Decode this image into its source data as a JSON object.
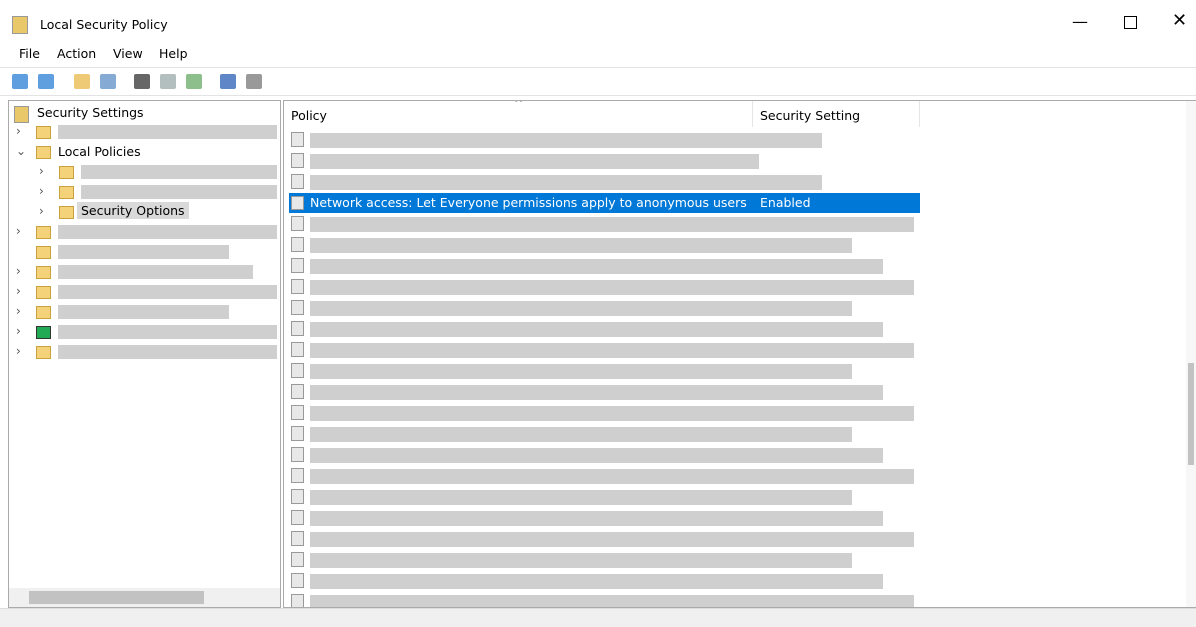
{
  "window": {
    "title": "Local Security Policy"
  },
  "menu": [
    "File",
    "Action",
    "View",
    "Help"
  ],
  "tree": {
    "root": "Security Settings",
    "local_policies": "Local Policies",
    "security_options": "Security Options"
  },
  "list": {
    "columns": [
      "Policy",
      "Security Setting"
    ],
    "selected": {
      "policy": "Network access: Let Everyone permissions apply to anonymous users",
      "setting": "Enabled"
    }
  }
}
